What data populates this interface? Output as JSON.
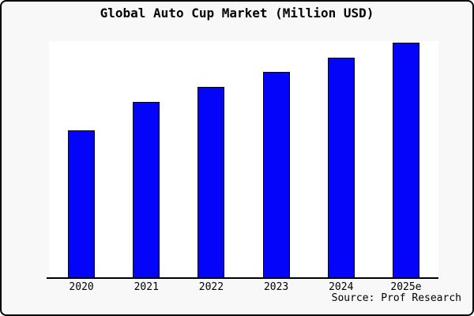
{
  "window": {
    "background_color": "#f8f8f8",
    "border_color": "#000000"
  },
  "chart_data": {
    "type": "bar",
    "title": "Global Auto Cup Market (Million USD)",
    "categories": [
      "2020",
      "2021",
      "2022",
      "2023",
      "2024",
      "2025e"
    ],
    "values": [
      188,
      224,
      244,
      263,
      281,
      300
    ],
    "value_scale_note": "no y-axis or gridlines shown; values are relative units estimated from bar heights",
    "xlabel": "",
    "ylabel": "",
    "ylim": [
      0,
      302
    ],
    "grid": false,
    "legend": false,
    "bar_fill": "#0404f8",
    "bar_border": "#000000",
    "plot_background": "#ffffff",
    "source_note": "Source: Prof Research"
  }
}
